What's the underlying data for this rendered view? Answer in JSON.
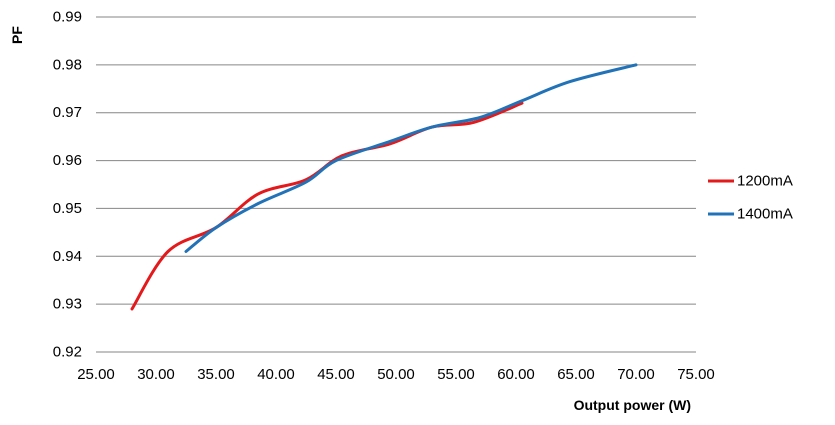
{
  "chart_data": {
    "type": "line",
    "xlabel": "Output power (W)",
    "ylabel": "PF",
    "xlim": [
      25,
      75
    ],
    "ylim": [
      0.92,
      0.99
    ],
    "x_ticks": [
      "25.00",
      "30.00",
      "35.00",
      "40.00",
      "45.00",
      "50.00",
      "55.00",
      "60.00",
      "65.00",
      "70.00",
      "75.00"
    ],
    "y_ticks": [
      "0.92",
      "0.93",
      "0.94",
      "0.95",
      "0.96",
      "0.97",
      "0.98",
      "0.99"
    ],
    "grid": "horizontal",
    "legend_position": "right",
    "series": [
      {
        "name": "1200mA",
        "color": "#e3191b",
        "points": [
          [
            28.0,
            0.929
          ],
          [
            31.0,
            0.941
          ],
          [
            35.0,
            0.946
          ],
          [
            38.5,
            0.953
          ],
          [
            42.5,
            0.956
          ],
          [
            45.5,
            0.961
          ],
          [
            49.5,
            0.9635
          ],
          [
            53.0,
            0.967
          ],
          [
            56.5,
            0.968
          ],
          [
            60.5,
            0.972
          ]
        ]
      },
      {
        "name": "1400mA",
        "color": "#2272b8",
        "points": [
          [
            32.5,
            0.941
          ],
          [
            35.0,
            0.946
          ],
          [
            38.5,
            0.951
          ],
          [
            42.5,
            0.9555
          ],
          [
            45.0,
            0.96
          ],
          [
            49.5,
            0.964
          ],
          [
            53.0,
            0.967
          ],
          [
            57.0,
            0.969
          ],
          [
            60.5,
            0.9725
          ],
          [
            64.5,
            0.9765
          ],
          [
            70.0,
            0.98
          ]
        ]
      }
    ]
  }
}
